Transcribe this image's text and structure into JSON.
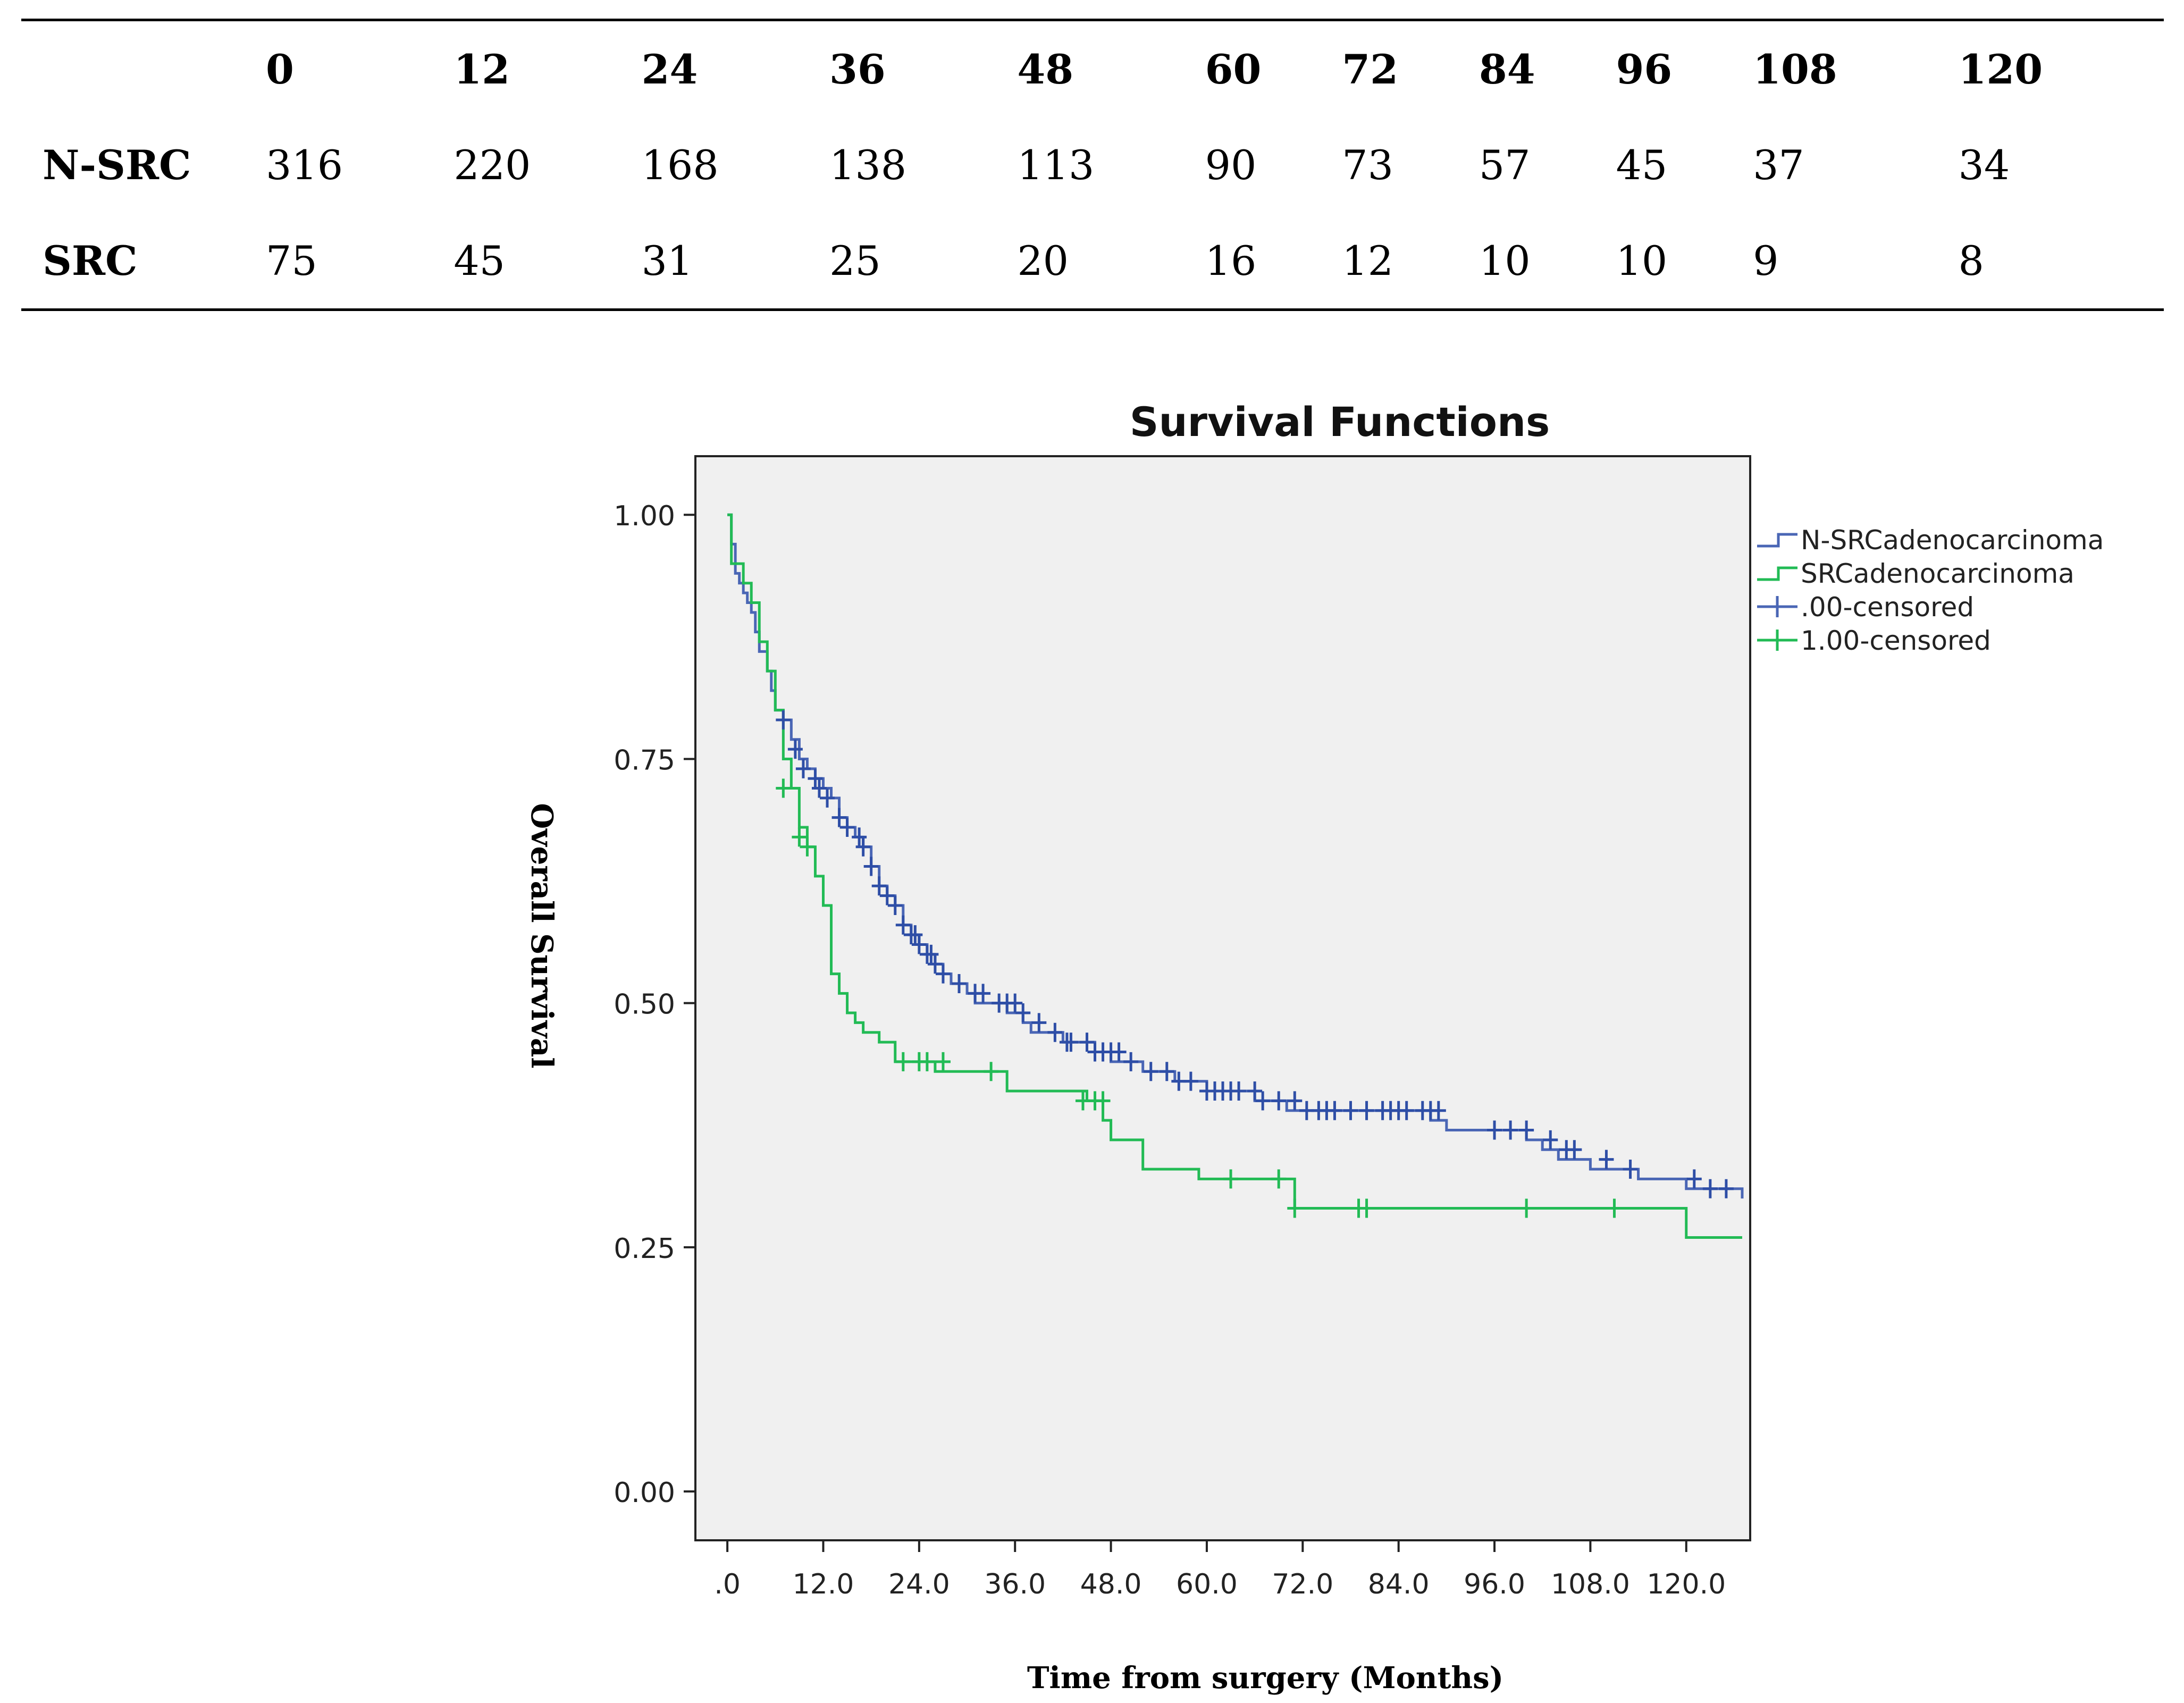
{
  "risk_table": {
    "header": [
      "0",
      "12",
      "24",
      "36",
      "48",
      "60",
      "72",
      "84",
      "96",
      "108",
      "120"
    ],
    "rows": [
      {
        "label": "N-SRC",
        "values": [
          "316",
          "220",
          "168",
          "138",
          "113",
          "90",
          "73",
          "57",
          "45",
          "37",
          "34"
        ]
      },
      {
        "label": "SRC",
        "values": [
          "75",
          "45",
          "31",
          "25",
          "20",
          "16",
          "12",
          "10",
          "10",
          "9",
          "8"
        ]
      }
    ]
  },
  "chart_data": {
    "type": "line",
    "title": "Survival Functions",
    "xlabel": "Time from surgery (Months)",
    "ylabel": "Overall Survival",
    "xlim": [
      -4,
      128
    ],
    "ylim": [
      -0.05,
      1.06
    ],
    "x_ticks": [
      0,
      12,
      24,
      36,
      48,
      60,
      72,
      84,
      96,
      108,
      120
    ],
    "x_tick_labels": [
      ".0",
      "12.0",
      "24.0",
      "36.0",
      "48.0",
      "60.0",
      "72.0",
      "84.0",
      "96.0",
      "108.0",
      "120.0"
    ],
    "y_ticks": [
      0,
      0.25,
      0.5,
      0.75,
      1.0
    ],
    "y_tick_labels": [
      "0.00",
      "0.25",
      "0.50",
      "0.75",
      "1.00"
    ],
    "grid": false,
    "legend_position": "right",
    "legend": [
      "N-SRCadenocarcinoma",
      "SRCadenocarcinoma",
      ".00-censored",
      "1.00-censored"
    ],
    "colors": {
      "plot_bg": "#f0f0f0",
      "nsrc": "#4a66b5",
      "src": "#22bb55"
    },
    "series": [
      {
        "name": "N-SRCadenocarcinoma",
        "color": "#4a66b5",
        "x": [
          0,
          0.5,
          1,
          1.5,
          2,
          2.5,
          3,
          3.5,
          4,
          5,
          5.5,
          6,
          7,
          8,
          9,
          10,
          11,
          12,
          13,
          14,
          15,
          16,
          17,
          18,
          19,
          20,
          21,
          22,
          23,
          24,
          25,
          26,
          27,
          28,
          29,
          30,
          31,
          33,
          35,
          37,
          38,
          40,
          42,
          44,
          46,
          48,
          50,
          52,
          54,
          56,
          58,
          60,
          64,
          66,
          68,
          70,
          72,
          88,
          90,
          94,
          100,
          102,
          104,
          106,
          108,
          112,
          114,
          120,
          127
        ],
        "y": [
          1.0,
          0.97,
          0.94,
          0.93,
          0.92,
          0.91,
          0.9,
          0.88,
          0.86,
          0.84,
          0.82,
          0.8,
          0.79,
          0.77,
          0.75,
          0.74,
          0.73,
          0.72,
          0.71,
          0.69,
          0.68,
          0.67,
          0.66,
          0.64,
          0.62,
          0.61,
          0.6,
          0.58,
          0.57,
          0.56,
          0.55,
          0.54,
          0.53,
          0.52,
          0.52,
          0.51,
          0.5,
          0.5,
          0.49,
          0.48,
          0.47,
          0.47,
          0.46,
          0.46,
          0.45,
          0.44,
          0.44,
          0.43,
          0.43,
          0.42,
          0.42,
          0.41,
          0.41,
          0.4,
          0.4,
          0.39,
          0.39,
          0.38,
          0.37,
          0.37,
          0.36,
          0.35,
          0.34,
          0.34,
          0.33,
          0.33,
          0.32,
          0.31,
          0.3
        ]
      },
      {
        "name": "SRCadenocarcinoma",
        "color": "#22bb55",
        "x": [
          0,
          0.5,
          2,
          3,
          4,
          5,
          6,
          7,
          8,
          9,
          10,
          11,
          12,
          13,
          14,
          15,
          16,
          17,
          19,
          21,
          26,
          35,
          45,
          47,
          48,
          52,
          59,
          71,
          120,
          127
        ],
        "y": [
          1.0,
          0.95,
          0.93,
          0.91,
          0.87,
          0.84,
          0.8,
          0.75,
          0.72,
          0.68,
          0.66,
          0.63,
          0.6,
          0.53,
          0.51,
          0.49,
          0.48,
          0.47,
          0.46,
          0.44,
          0.43,
          0.41,
          0.4,
          0.38,
          0.36,
          0.33,
          0.32,
          0.29,
          0.26,
          0.26
        ]
      }
    ],
    "censored": [
      {
        "name": ".00-censored",
        "color": "#2e4ea6",
        "points": [
          [
            7,
            0.79
          ],
          [
            8.5,
            0.76
          ],
          [
            9.5,
            0.74
          ],
          [
            11,
            0.73
          ],
          [
            11.5,
            0.72
          ],
          [
            12.5,
            0.71
          ],
          [
            14,
            0.69
          ],
          [
            15,
            0.68
          ],
          [
            16.5,
            0.67
          ],
          [
            17,
            0.66
          ],
          [
            18,
            0.64
          ],
          [
            19,
            0.62
          ],
          [
            20,
            0.61
          ],
          [
            21,
            0.6
          ],
          [
            22,
            0.58
          ],
          [
            23,
            0.57
          ],
          [
            23.5,
            0.57
          ],
          [
            24,
            0.56
          ],
          [
            25,
            0.55
          ],
          [
            25.5,
            0.55
          ],
          [
            26,
            0.54
          ],
          [
            27,
            0.53
          ],
          [
            29,
            0.52
          ],
          [
            31,
            0.51
          ],
          [
            32,
            0.51
          ],
          [
            34,
            0.5
          ],
          [
            35,
            0.5
          ],
          [
            36,
            0.5
          ],
          [
            37,
            0.49
          ],
          [
            39,
            0.48
          ],
          [
            41,
            0.47
          ],
          [
            42.5,
            0.46
          ],
          [
            43,
            0.46
          ],
          [
            45,
            0.46
          ],
          [
            46,
            0.45
          ],
          [
            47,
            0.45
          ],
          [
            48,
            0.45
          ],
          [
            49,
            0.45
          ],
          [
            50.5,
            0.44
          ],
          [
            53,
            0.43
          ],
          [
            55,
            0.43
          ],
          [
            56.5,
            0.42
          ],
          [
            58,
            0.42
          ],
          [
            60,
            0.41
          ],
          [
            61,
            0.41
          ],
          [
            62,
            0.41
          ],
          [
            63,
            0.41
          ],
          [
            64,
            0.41
          ],
          [
            66,
            0.41
          ],
          [
            67,
            0.4
          ],
          [
            69,
            0.4
          ],
          [
            71,
            0.4
          ],
          [
            72.5,
            0.39
          ],
          [
            74,
            0.39
          ],
          [
            75,
            0.39
          ],
          [
            76,
            0.39
          ],
          [
            78,
            0.39
          ],
          [
            80,
            0.39
          ],
          [
            82,
            0.39
          ],
          [
            83,
            0.39
          ],
          [
            84,
            0.39
          ],
          [
            85,
            0.39
          ],
          [
            87,
            0.39
          ],
          [
            88,
            0.39
          ],
          [
            89,
            0.39
          ],
          [
            96,
            0.37
          ],
          [
            98,
            0.37
          ],
          [
            100,
            0.37
          ],
          [
            103,
            0.36
          ],
          [
            105,
            0.35
          ],
          [
            106,
            0.35
          ],
          [
            110,
            0.34
          ],
          [
            113,
            0.33
          ],
          [
            121,
            0.32
          ],
          [
            123,
            0.31
          ],
          [
            125,
            0.31
          ]
        ]
      },
      {
        "name": "1.00-censored",
        "color": "#22bb55",
        "points": [
          [
            7,
            0.72
          ],
          [
            9,
            0.67
          ],
          [
            10,
            0.66
          ],
          [
            22,
            0.44
          ],
          [
            24,
            0.44
          ],
          [
            25,
            0.44
          ],
          [
            27,
            0.44
          ],
          [
            33,
            0.43
          ],
          [
            44.5,
            0.4
          ],
          [
            46,
            0.4
          ],
          [
            47,
            0.4
          ],
          [
            63,
            0.32
          ],
          [
            69,
            0.32
          ],
          [
            71,
            0.29
          ],
          [
            79,
            0.29
          ],
          [
            80,
            0.29
          ],
          [
            100,
            0.29
          ],
          [
            111,
            0.29
          ]
        ]
      }
    ]
  }
}
